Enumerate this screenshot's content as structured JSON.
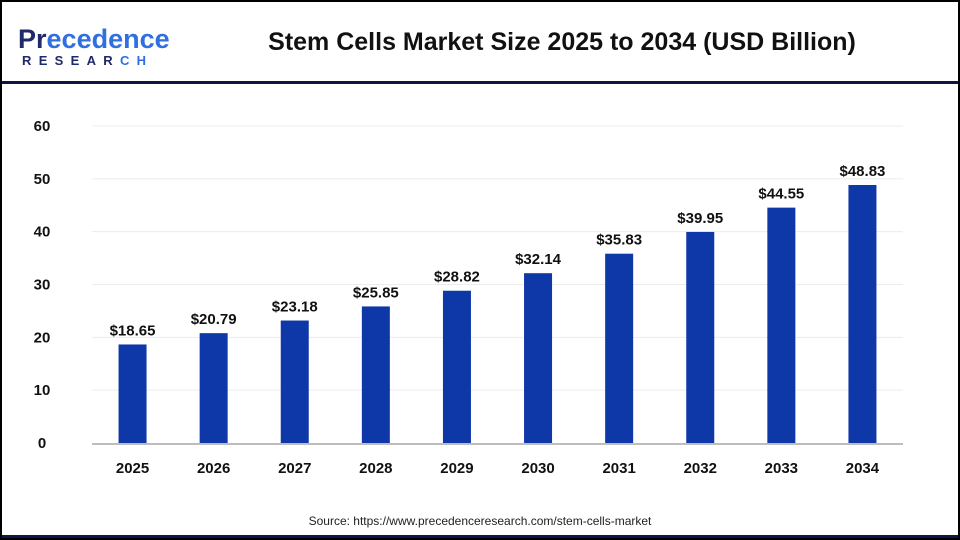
{
  "logo": {
    "line1": "Precedence",
    "line2": "RESEARCH"
  },
  "chart_data": {
    "type": "bar",
    "title": "Stem Cells Market Size 2025 to 2034 (USD Billion)",
    "categories": [
      "2025",
      "2026",
      "2027",
      "2028",
      "2029",
      "2030",
      "2031",
      "2032",
      "2033",
      "2034"
    ],
    "values": [
      18.65,
      20.79,
      23.18,
      25.85,
      28.82,
      32.14,
      35.83,
      39.95,
      44.55,
      48.83
    ],
    "data_labels": [
      "$18.65",
      "$20.79",
      "$23.18",
      "$25.85",
      "$28.82",
      "$32.14",
      "$35.83",
      "$39.95",
      "$44.55",
      "$48.83"
    ],
    "yticks": [
      0,
      10,
      20,
      30,
      40,
      50,
      60
    ],
    "ylim": [
      0,
      60
    ],
    "xlabel": "",
    "ylabel": "",
    "grid": true,
    "bar_color": "#0e37a8"
  },
  "source": "Source: https://www.precedenceresearch.com/stem-cells-market"
}
